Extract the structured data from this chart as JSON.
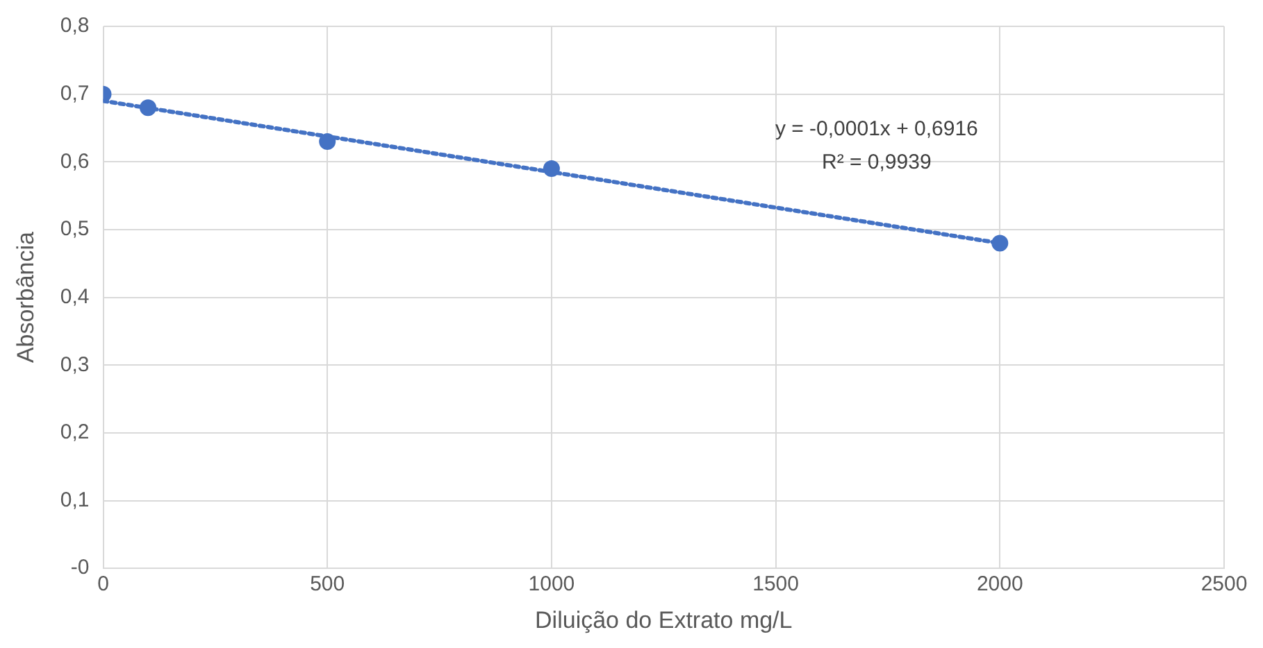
{
  "chart_data": {
    "type": "scatter",
    "xlabel": "Diluição do Extrato mg/L",
    "ylabel": "Absorbância",
    "series": [
      {
        "type": "line",
        "x": [
          0,
          2000
        ],
        "values": [
          0.69,
          0.48
        ],
        "color": "#4472c4",
        "line_style": "dotted",
        "marker": "none"
      },
      {
        "type": "scatter",
        "x": [
          0,
          100,
          500,
          1000,
          2000
        ],
        "values": [
          0.7,
          0.68,
          0.63,
          0.59,
          0.48
        ],
        "color": "#4472c4",
        "marker": "circle"
      }
    ],
    "xlim": [
      0,
      2500
    ],
    "xticks": [
      0,
      500,
      1000,
      1500,
      2000,
      2500
    ],
    "ylim": [
      0,
      0.8
    ],
    "yticks": [
      {
        "value": 0,
        "label": "-0"
      },
      {
        "value": 0.1,
        "label": "0,1"
      },
      {
        "value": 0.2,
        "label": "0,2"
      },
      {
        "value": 0.3,
        "label": "0,3"
      },
      {
        "value": 0.4,
        "label": "0,4"
      },
      {
        "value": 0.5,
        "label": "0,5"
      },
      {
        "value": 0.6,
        "label": "0,6"
      },
      {
        "value": 0.7,
        "label": "0,7"
      },
      {
        "value": 0.8,
        "label": "0,8"
      }
    ],
    "grid": true,
    "annotations": [
      "y = -0,0001x + 0,6916",
      "R² = 0,9939"
    ]
  }
}
